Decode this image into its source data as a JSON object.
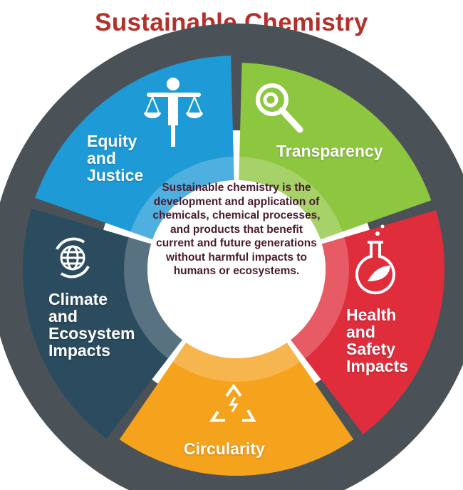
{
  "title": "Sustainable Chemistry",
  "center_text": "Sustainable chemistry is the development and application of chemicals, chemical processes, and products that benefit current and future generations without harmful impacts to humans or ecosystems.",
  "segments": [
    {
      "label": "Transparency",
      "icon": "magnifying-glass-icon",
      "color": "#8dc63f"
    },
    {
      "label": "Health and Safety Impacts",
      "icon": "flask-leaf-icon",
      "color": "#e02d3c"
    },
    {
      "label": "Circularity",
      "icon": "recycle-icon",
      "color": "#f5a21c"
    },
    {
      "label": "Climate and Ecosystem Impacts",
      "icon": "globe-cycle-icon",
      "color": "#2b4b5e"
    },
    {
      "label": "Equity and Justice",
      "icon": "person-scales-icon",
      "color": "#1e9ad6"
    }
  ],
  "colors": {
    "title": "#b5302a",
    "center_text": "#4a1a2e",
    "gap": "#4a5258"
  }
}
